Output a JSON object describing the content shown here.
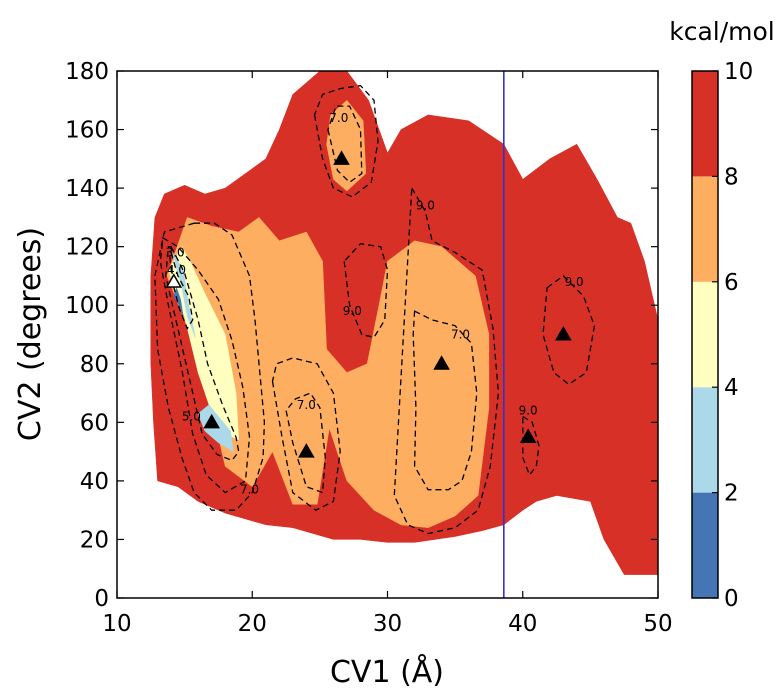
{
  "chart_data": {
    "type": "contour",
    "xlabel": "CV1 (Å)",
    "ylabel": "CV2 (degrees)",
    "xlim": [
      10,
      50
    ],
    "ylim": [
      0,
      180
    ],
    "x_ticks": [
      "10",
      "20",
      "30",
      "40",
      "50"
    ],
    "y_ticks": [
      "0",
      "20",
      "40",
      "60",
      "80",
      "100",
      "120",
      "140",
      "160",
      "180"
    ],
    "colorbar": {
      "unit": "kcal/mol",
      "ticks": [
        "0",
        "2",
        "4",
        "6",
        "8",
        "10"
      ],
      "levels": [
        0,
        2,
        4,
        6,
        8,
        10
      ],
      "colors": [
        "#4575b4",
        "#abd9e9",
        "#ffffbf",
        "#fdae61",
        "#d73027"
      ]
    },
    "vertical_line": {
      "x": 38.6,
      "color": "#3333cc"
    },
    "minima_markers": [
      {
        "x": 14.2,
        "y": 108,
        "style": "open"
      },
      {
        "x": 17.0,
        "y": 60,
        "style": "filled"
      },
      {
        "x": 24.0,
        "y": 50,
        "style": "filled"
      },
      {
        "x": 26.6,
        "y": 150,
        "style": "filled"
      },
      {
        "x": 34.0,
        "y": 80,
        "style": "filled"
      },
      {
        "x": 40.4,
        "y": 55,
        "style": "filled"
      },
      {
        "x": 43.0,
        "y": 90,
        "style": "filled"
      }
    ],
    "contour_labels": [
      {
        "text": "3.0",
        "x": 14.3,
        "y": 118
      },
      {
        "text": "4.0",
        "x": 14.4,
        "y": 112
      },
      {
        "text": "5.0",
        "x": 15.5,
        "y": 62
      },
      {
        "text": "7.0",
        "x": 19.8,
        "y": 37
      },
      {
        "text": "7.0",
        "x": 24.0,
        "y": 66
      },
      {
        "text": "7.0",
        "x": 26.4,
        "y": 164
      },
      {
        "text": "9.0",
        "x": 27.4,
        "y": 98
      },
      {
        "text": "9.0",
        "x": 32.8,
        "y": 134
      },
      {
        "text": "7.0",
        "x": 35.4,
        "y": 90
      },
      {
        "text": "9.0",
        "x": 40.4,
        "y": 64
      },
      {
        "text": "9.0",
        "x": 43.8,
        "y": 108
      }
    ],
    "regions": [
      {
        "level": "8-10",
        "color": "#d73027",
        "points": [
          [
            13,
            40
          ],
          [
            14.5,
            38
          ],
          [
            16,
            33
          ],
          [
            18,
            29
          ],
          [
            21,
            25
          ],
          [
            23,
            24
          ],
          [
            26,
            20
          ],
          [
            28,
            20
          ],
          [
            30,
            19
          ],
          [
            32,
            19
          ],
          [
            35,
            21
          ],
          [
            37,
            23
          ],
          [
            38.6,
            25
          ],
          [
            38.6,
            155
          ],
          [
            36,
            163
          ],
          [
            33,
            165
          ],
          [
            31,
            160
          ],
          [
            30,
            152
          ],
          [
            28.6,
            170
          ],
          [
            27,
            180
          ],
          [
            25,
            180
          ],
          [
            23,
            172
          ],
          [
            22,
            160
          ],
          [
            21,
            150
          ],
          [
            19.5,
            145
          ],
          [
            18,
            140
          ],
          [
            16.5,
            138
          ],
          [
            15,
            141
          ],
          [
            13.5,
            138
          ],
          [
            12.8,
            130
          ],
          [
            12.5,
            110
          ],
          [
            12.5,
            80
          ],
          [
            12.7,
            60
          ]
        ]
      },
      {
        "level": "8-10",
        "color": "#d73027",
        "points": [
          [
            38.6,
            25
          ],
          [
            40,
            30
          ],
          [
            41,
            33
          ],
          [
            42.5,
            35
          ],
          [
            45,
            33
          ],
          [
            46,
            20
          ],
          [
            47.5,
            8
          ],
          [
            49,
            8
          ],
          [
            50,
            8
          ],
          [
            50,
            95
          ],
          [
            49,
            115
          ],
          [
            48,
            128
          ],
          [
            47,
            130
          ],
          [
            45.5,
            143
          ],
          [
            44,
            155
          ],
          [
            42,
            150
          ],
          [
            40,
            143
          ],
          [
            38.6,
            155
          ]
        ]
      },
      {
        "level": "6-8",
        "color": "#fdae61",
        "points": [
          [
            13.7,
            110
          ],
          [
            15,
            95
          ],
          [
            16,
            80
          ],
          [
            17,
            65
          ],
          [
            18,
            45
          ],
          [
            20,
            38
          ],
          [
            21.5,
            50
          ],
          [
            23,
            32
          ],
          [
            24.8,
            32
          ],
          [
            25.7,
            58
          ],
          [
            27,
            40
          ],
          [
            29,
            30
          ],
          [
            31,
            25
          ],
          [
            33,
            24
          ],
          [
            35,
            28
          ],
          [
            36.7,
            35
          ],
          [
            37.5,
            65
          ],
          [
            37.5,
            90
          ],
          [
            36.5,
            110
          ],
          [
            34,
            120
          ],
          [
            32,
            122
          ],
          [
            30,
            115
          ],
          [
            29.5,
            103
          ],
          [
            28.5,
            80
          ],
          [
            27,
            77
          ],
          [
            25.5,
            85
          ],
          [
            25.2,
            115
          ],
          [
            24,
            125
          ],
          [
            22,
            122
          ],
          [
            20.5,
            130
          ],
          [
            19,
            125
          ],
          [
            17,
            127
          ],
          [
            15.2,
            130
          ]
        ]
      },
      {
        "level": "6-8",
        "color": "#fdae61",
        "points": [
          [
            25.5,
            155
          ],
          [
            26,
            143
          ],
          [
            27,
            139
          ],
          [
            28.4,
            145
          ],
          [
            28.2,
            163
          ],
          [
            27,
            170
          ],
          [
            25.8,
            165
          ]
        ]
      },
      {
        "level": "4-6",
        "color": "#ffffbf",
        "points": [
          [
            13.8,
            112
          ],
          [
            15,
            96
          ],
          [
            16,
            77
          ],
          [
            16.8,
            66
          ],
          [
            18,
            56
          ],
          [
            19,
            54
          ],
          [
            18.8,
            70
          ],
          [
            18,
            90
          ],
          [
            16.5,
            104
          ],
          [
            15.5,
            114
          ],
          [
            14.8,
            120
          ]
        ]
      },
      {
        "level": "2-4",
        "color": "#abd9e9",
        "points": [
          [
            14.1,
            118
          ],
          [
            14.8,
            106
          ],
          [
            15.2,
            96
          ],
          [
            15.8,
            89
          ],
          [
            15.3,
            100
          ],
          [
            14.9,
            112
          ]
        ]
      },
      {
        "level": "2-4",
        "color": "#abd9e9",
        "points": [
          [
            16,
            63
          ],
          [
            16.5,
            57
          ],
          [
            17.5,
            53
          ],
          [
            18.6,
            50
          ],
          [
            18.4,
            57
          ],
          [
            17.5,
            62
          ],
          [
            16.8,
            66
          ]
        ]
      },
      {
        "level": "0-2",
        "color": "#4575b4",
        "points": [
          [
            14.2,
            103
          ],
          [
            14.6,
            100
          ],
          [
            14.9,
            96
          ],
          [
            14.7,
            102
          ],
          [
            14.4,
            106
          ]
        ]
      }
    ],
    "dashed_contours": [
      [
        [
          14,
          118
        ],
        [
          14.5,
          110
        ],
        [
          15.3,
          103
        ],
        [
          15.6,
          95
        ],
        [
          15.2,
          92
        ],
        [
          14.6,
          99
        ],
        [
          14.1,
          108
        ],
        [
          13.9,
          117
        ]
      ],
      [
        [
          14,
          120
        ],
        [
          15,
          111
        ],
        [
          16,
          95
        ],
        [
          16.7,
          80
        ],
        [
          17.8,
          66
        ],
        [
          18.8,
          55
        ],
        [
          19,
          50
        ],
        [
          18.5,
          47
        ],
        [
          17.4,
          49
        ],
        [
          16.3,
          56
        ],
        [
          15.5,
          72
        ],
        [
          14.5,
          92
        ],
        [
          13.6,
          110
        ],
        [
          13.8,
          120
        ]
      ],
      [
        [
          13.4,
          123
        ],
        [
          14.5,
          120
        ],
        [
          16,
          112
        ],
        [
          17.5,
          102
        ],
        [
          18.5,
          88
        ],
        [
          19.3,
          72
        ],
        [
          19.8,
          55
        ],
        [
          19.5,
          40
        ],
        [
          18,
          36
        ],
        [
          16.6,
          42
        ],
        [
          15.6,
          56
        ],
        [
          14.8,
          78
        ],
        [
          13.8,
          100
        ],
        [
          13.2,
          115
        ]
      ],
      [
        [
          15.7,
          128
        ],
        [
          17.2,
          128
        ],
        [
          18.5,
          124
        ],
        [
          19.8,
          110
        ],
        [
          20.2,
          95
        ],
        [
          20.5,
          80
        ],
        [
          20.9,
          60
        ],
        [
          20.8,
          48
        ],
        [
          20,
          36
        ],
        [
          18.8,
          30
        ],
        [
          17,
          30
        ],
        [
          15.7,
          36
        ],
        [
          14.8,
          48
        ],
        [
          13.8,
          65
        ],
        [
          13,
          85
        ],
        [
          12.8,
          110
        ],
        [
          13.5,
          125
        ]
      ],
      [
        [
          22.5,
          64
        ],
        [
          23,
          53
        ],
        [
          24,
          38
        ],
        [
          25.2,
          36
        ],
        [
          25.4,
          48
        ],
        [
          25,
          65
        ],
        [
          24.3,
          70
        ],
        [
          23.2,
          68
        ]
      ],
      [
        [
          21.5,
          74
        ],
        [
          22.2,
          55
        ],
        [
          23,
          36
        ],
        [
          24.7,
          30
        ],
        [
          26,
          33
        ],
        [
          26.5,
          50
        ],
        [
          26,
          70
        ],
        [
          24.8,
          80
        ],
        [
          23,
          82
        ],
        [
          21.8,
          80
        ]
      ],
      [
        [
          25.6,
          160
        ],
        [
          26.3,
          146
        ],
        [
          27.2,
          142
        ],
        [
          28.1,
          145
        ],
        [
          28,
          160
        ],
        [
          27.2,
          168
        ],
        [
          26.2,
          168
        ]
      ],
      [
        [
          24.6,
          165
        ],
        [
          25.2,
          150
        ],
        [
          26,
          140
        ],
        [
          27.4,
          137
        ],
        [
          28.8,
          142
        ],
        [
          29.3,
          156
        ],
        [
          29,
          170
        ],
        [
          28,
          175
        ],
        [
          26.5,
          174
        ],
        [
          25.2,
          172
        ]
      ],
      [
        [
          26.8,
          115
        ],
        [
          27.2,
          100
        ],
        [
          28.1,
          90
        ],
        [
          29,
          89
        ],
        [
          29.8,
          95
        ],
        [
          30,
          112
        ],
        [
          29.5,
          120
        ],
        [
          28,
          121
        ]
      ],
      [
        [
          32,
          98
        ],
        [
          33.3,
          95
        ],
        [
          35,
          93
        ],
        [
          36.2,
          87
        ],
        [
          36.6,
          70
        ],
        [
          36.2,
          50
        ],
        [
          35.5,
          40
        ],
        [
          34.5,
          37
        ],
        [
          33,
          37
        ],
        [
          32,
          45
        ],
        [
          32.1,
          65
        ],
        [
          31.9,
          90
        ]
      ],
      [
        [
          31.8,
          140
        ],
        [
          32.8,
          132
        ],
        [
          33.3,
          122
        ],
        [
          35,
          118
        ],
        [
          37,
          112
        ],
        [
          37.8,
          92
        ],
        [
          38.2,
          70
        ],
        [
          37.6,
          45
        ],
        [
          36.7,
          30
        ],
        [
          35,
          24
        ],
        [
          33,
          22
        ],
        [
          31.5,
          25
        ],
        [
          30.5,
          35
        ]
      ],
      [
        [
          40,
          62
        ],
        [
          40.7,
          60
        ],
        [
          41.2,
          52
        ],
        [
          41,
          45
        ],
        [
          40.5,
          42
        ],
        [
          40,
          48
        ]
      ],
      [
        [
          41.8,
          106
        ],
        [
          43,
          110
        ],
        [
          44.5,
          103
        ],
        [
          45.3,
          93
        ],
        [
          44.7,
          77
        ],
        [
          43.4,
          73
        ],
        [
          42.3,
          77
        ],
        [
          41.5,
          90
        ]
      ]
    ]
  }
}
